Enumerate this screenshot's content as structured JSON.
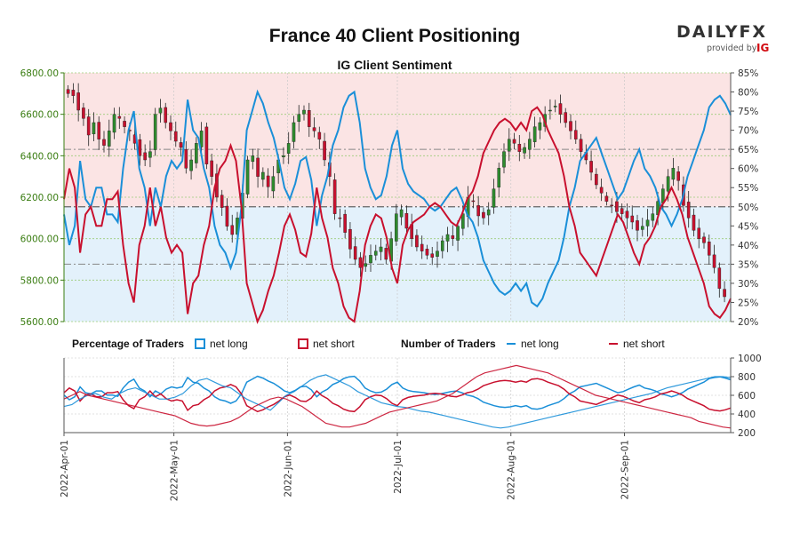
{
  "header": {
    "title": "France 40 Client Positioning",
    "subtitle": "IG Client Sentiment"
  },
  "logo": {
    "brand_left": "DAILY",
    "brand_right": "FX",
    "provided_by": "provided by",
    "ig": "IG"
  },
  "colors": {
    "net_long": "#1a8fd8",
    "net_short": "#c8102e",
    "candle_up": "#2e8b2e",
    "candle_down": "#c8102e",
    "upper_zone": "#fbe4e4",
    "lower_zone": "#e3f1fb",
    "price_axis": "#3a7d12"
  },
  "legend": {
    "pct_heading": "Percentage of Traders",
    "num_heading": "Number of Traders",
    "pct_long": "net long",
    "pct_short": "net short",
    "num_long": "net long",
    "num_short": "net short"
  },
  "chart_data": [
    {
      "type": "candlestick",
      "title": "IG Client Sentiment",
      "x_ticks": [
        "2022-Apr-01",
        "2022-May-01",
        "2022-Jun-01",
        "2022-Jul-01",
        "2022-Aug-01",
        "2022-Sep-01"
      ],
      "x_range": [
        "2022-04-01",
        "2022-09-30"
      ],
      "y_left_label": "",
      "y_left_range": [
        5600,
        6800
      ],
      "y_left_ticks": [
        "5600.00",
        "5800.00",
        "6000.00",
        "6200.00",
        "6400.00",
        "6600.00",
        "6800.00"
      ],
      "y_right_range": [
        20,
        85
      ],
      "y_right_ticks": [
        "20%",
        "25%",
        "30%",
        "35%",
        "40%",
        "45%",
        "50%",
        "55%",
        "60%",
        "65%",
        "70%",
        "75%",
        "80%",
        "85%"
      ],
      "reference_lines_pct": [
        35,
        50,
        65
      ],
      "close_approx": [
        6700,
        6690,
        6620,
        6580,
        6500,
        6560,
        6480,
        6450,
        6520,
        6600,
        6580,
        6540,
        6520,
        6460,
        6400,
        6380,
        6420,
        6600,
        6630,
        6560,
        6520,
        6470,
        6440,
        6340,
        6380,
        6460,
        6520,
        6360,
        6300,
        6200,
        6150,
        6060,
        6020,
        6100,
        6220,
        6380,
        6400,
        6300,
        6320,
        6250,
        6300,
        6380,
        6400,
        6460,
        6560,
        6600,
        6620,
        6540,
        6520,
        6480,
        6380,
        6300,
        6120,
        6100,
        6030,
        5950,
        5900,
        5860,
        5880,
        5920,
        5940,
        5960,
        5900,
        6000,
        6120,
        6140,
        6050,
        6000,
        5960,
        5940,
        5920,
        5910,
        5940,
        5990,
        6020,
        6000,
        6060,
        6120,
        6200,
        6180,
        6110,
        6100,
        6140,
        6240,
        6340,
        6420,
        6480,
        6460,
        6420,
        6440,
        6480,
        6540,
        6560,
        6600,
        6620,
        6640,
        6600,
        6560,
        6520,
        6480,
        6420,
        6380,
        6320,
        6260,
        6220,
        6180,
        6160,
        6130,
        6120,
        6100,
        6080,
        6040,
        6060,
        6090,
        6120,
        6180,
        6240,
        6300,
        6340,
        6280,
        6160,
        6100,
        6040,
        6000,
        5980,
        5920,
        5860,
        5760,
        5720
      ],
      "net_long_pct_approx": [
        48,
        40,
        45,
        62,
        52,
        50,
        55,
        55,
        48,
        48,
        46,
        60,
        70,
        75,
        60,
        55,
        45,
        55,
        50,
        58,
        62,
        60,
        62,
        78,
        70,
        68,
        60,
        55,
        45,
        40,
        38,
        34,
        38,
        50,
        70,
        75,
        80,
        77,
        72,
        68,
        62,
        55,
        52,
        56,
        62,
        63,
        57,
        45,
        53,
        58,
        66,
        70,
        76,
        79,
        80,
        72,
        60,
        55,
        52,
        53,
        58,
        66,
        70,
        60,
        56,
        54,
        53,
        52,
        50,
        49,
        50,
        52,
        54,
        55,
        52,
        48,
        46,
        42,
        36,
        33,
        30,
        28,
        27,
        28,
        30,
        28,
        30,
        25,
        24,
        26,
        30,
        33,
        36,
        42,
        50,
        55,
        62,
        64,
        66,
        68,
        64,
        60,
        56,
        52,
        54,
        58,
        62,
        65,
        60,
        58,
        55,
        50,
        48,
        45,
        48,
        52,
        58,
        62,
        66,
        70,
        76,
        78,
        79,
        77,
        74
      ],
      "series": [
        {
          "name": "net long",
          "role": "percentage",
          "unit": "%"
        },
        {
          "name": "net short",
          "role": "percentage",
          "unit": "%"
        }
      ]
    },
    {
      "type": "line",
      "title": "",
      "y_range": [
        200,
        1000
      ],
      "y_ticks": [
        "200",
        "400",
        "600",
        "800",
        "1000"
      ],
      "series": [
        {
          "name": "net long",
          "role": "number",
          "values": [
            480,
            500,
            560,
            600,
            620,
            580,
            560,
            620,
            660,
            680,
            640,
            600,
            560,
            560,
            580,
            620,
            700,
            760,
            780,
            740,
            700,
            680,
            620,
            560,
            520,
            480,
            440,
            520,
            600,
            640,
            700,
            760,
            800,
            820,
            780,
            740,
            700,
            640,
            600,
            560,
            520,
            500,
            480,
            470,
            450,
            430,
            420,
            400,
            380,
            360,
            340,
            320,
            300,
            280,
            260,
            250,
            260,
            280,
            300,
            320,
            340,
            360,
            380,
            400,
            420,
            440,
            460,
            480,
            500,
            520,
            540,
            560,
            580,
            600,
            620,
            650,
            680,
            700,
            720,
            740,
            760,
            780,
            800,
            800,
            790
          ]
        },
        {
          "name": "net short",
          "role": "number",
          "values": [
            560,
            600,
            640,
            600,
            580,
            560,
            540,
            520,
            500,
            480,
            460,
            440,
            420,
            400,
            380,
            340,
            300,
            280,
            270,
            280,
            300,
            320,
            360,
            420,
            480,
            520,
            560,
            580,
            560,
            520,
            480,
            420,
            360,
            300,
            280,
            260,
            260,
            280,
            300,
            340,
            380,
            420,
            440,
            460,
            480,
            500,
            520,
            540,
            580,
            620,
            680,
            740,
            800,
            840,
            860,
            880,
            900,
            920,
            900,
            880,
            860,
            840,
            800,
            760,
            720,
            680,
            640,
            600,
            580,
            560,
            540,
            520,
            500,
            480,
            460,
            440,
            420,
            400,
            380,
            360,
            320,
            300,
            280,
            260,
            250
          ]
        }
      ]
    }
  ]
}
